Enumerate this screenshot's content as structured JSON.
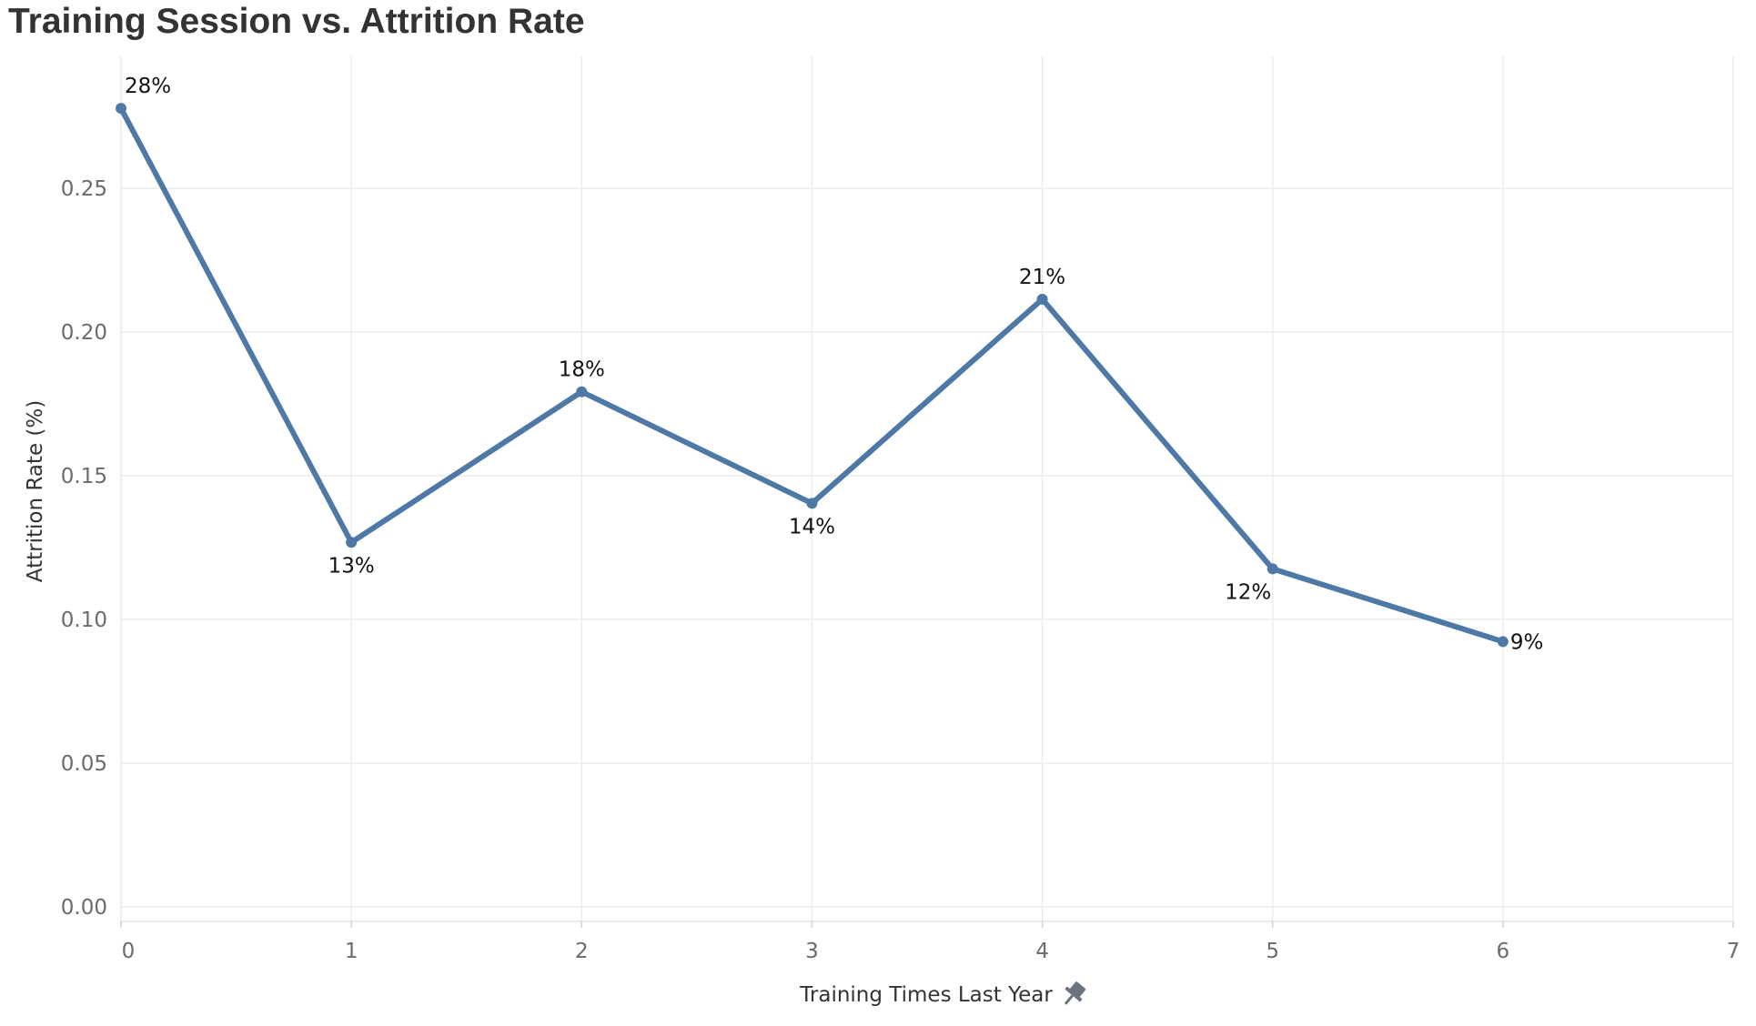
{
  "chart_data": {
    "type": "line",
    "title": "Training Session vs. Attrition Rate",
    "xlabel": "Training Times Last Year",
    "ylabel": "Attrition Rate (%)",
    "xlim": [
      0,
      7
    ],
    "ylim": [
      0,
      0.28
    ],
    "x_ticks": [
      "0",
      "1",
      "2",
      "3",
      "4",
      "5",
      "6",
      "7"
    ],
    "y_ticks": [
      "0.00",
      "0.05",
      "0.10",
      "0.15",
      "0.20",
      "0.25"
    ],
    "grid": true,
    "line_color": "#4e79a7",
    "series": [
      {
        "x": [
          0,
          1,
          2,
          3,
          4,
          5,
          6
        ],
        "values": [
          0.2778,
          0.1268,
          0.1792,
          0.1404,
          0.2114,
          0.1176,
          0.0923
        ],
        "labels": [
          "28%",
          "13%",
          "18%",
          "14%",
          "21%",
          "12%",
          "9%"
        ]
      }
    ]
  },
  "icons": {
    "x_axis_pin": "pin-icon"
  }
}
